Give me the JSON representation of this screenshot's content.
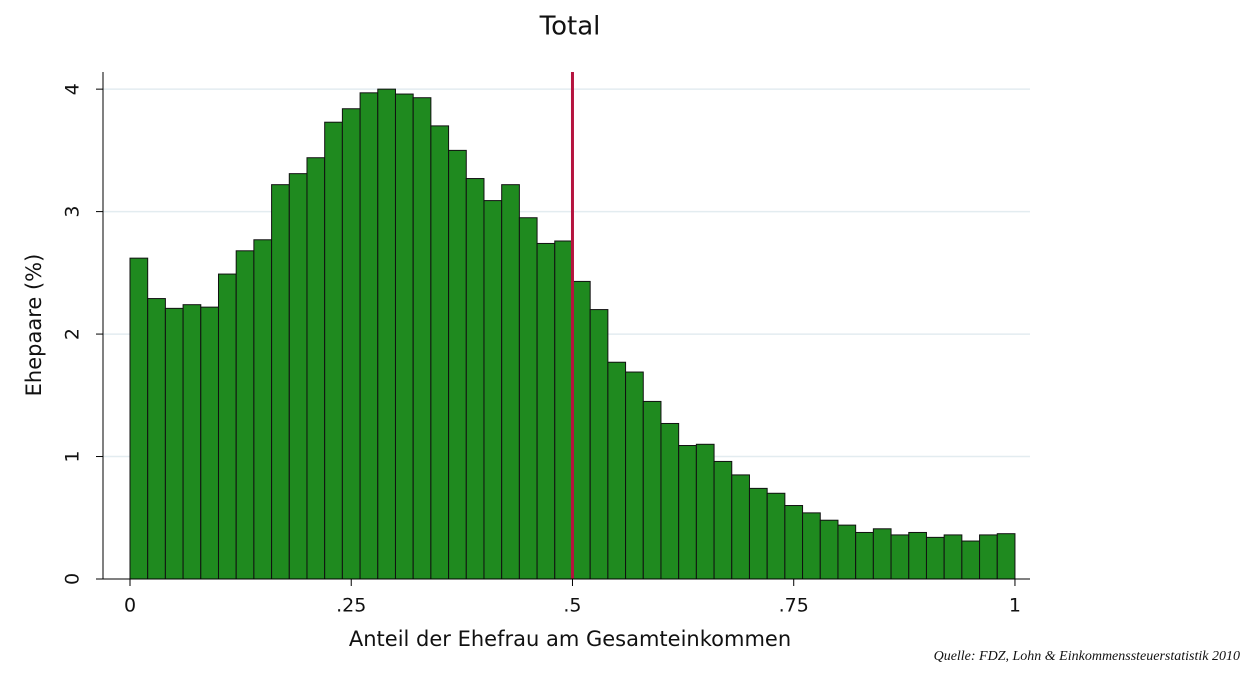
{
  "chart_data": {
    "type": "histogram",
    "title": "Total",
    "x_label": "Anteil der Ehefrau am Gesamteinkommen",
    "y_label": "Ehepaare (%)",
    "source": "Quelle: FDZ, Lohn & Einkommenssteuerstatistik 2010",
    "bins": [
      0,
      0.02,
      0.04,
      0.06,
      0.08,
      0.1,
      0.12,
      0.14,
      0.16,
      0.18,
      0.2,
      0.22,
      0.24,
      0.26,
      0.28,
      0.3,
      0.32,
      0.34,
      0.36,
      0.38,
      0.4,
      0.42,
      0.44,
      0.46,
      0.48,
      0.5,
      0.52,
      0.54,
      0.56,
      0.58,
      0.6,
      0.62,
      0.64,
      0.66,
      0.68,
      0.7,
      0.72,
      0.74,
      0.76,
      0.78,
      0.8,
      0.82,
      0.84,
      0.86,
      0.88,
      0.9,
      0.92,
      0.94,
      0.96,
      0.98,
      1
    ],
    "values": [
      2.62,
      2.29,
      2.21,
      2.24,
      2.22,
      2.49,
      2.68,
      2.77,
      3.22,
      3.31,
      3.44,
      3.73,
      3.84,
      3.97,
      4.0,
      3.96,
      3.93,
      3.7,
      3.5,
      3.27,
      3.09,
      3.22,
      2.95,
      2.74,
      2.76,
      2.43,
      2.2,
      1.77,
      1.69,
      1.45,
      1.27,
      1.09,
      1.1,
      0.96,
      0.85,
      0.74,
      0.7,
      0.6,
      0.54,
      0.48,
      0.44,
      0.38,
      0.41,
      0.36,
      0.38,
      0.34,
      0.36,
      0.31,
      0.36,
      0.37
    ],
    "color": "#1f8a1f",
    "edge_color": "#111111",
    "vline": 0.5,
    "vline_color": "#b5133e",
    "xlim": [
      -0.0305,
      1.017
    ],
    "xticks": [
      0,
      {
        "value": 0.25,
        "label": ".25"
      },
      {
        "value": 0.5,
        "label": ".5"
      },
      {
        "value": 0.75,
        "label": ".75"
      },
      1
    ],
    "ylim": [
      0,
      4.14
    ],
    "yticks": [
      0,
      1,
      2,
      3,
      4
    ],
    "grid": true
  }
}
